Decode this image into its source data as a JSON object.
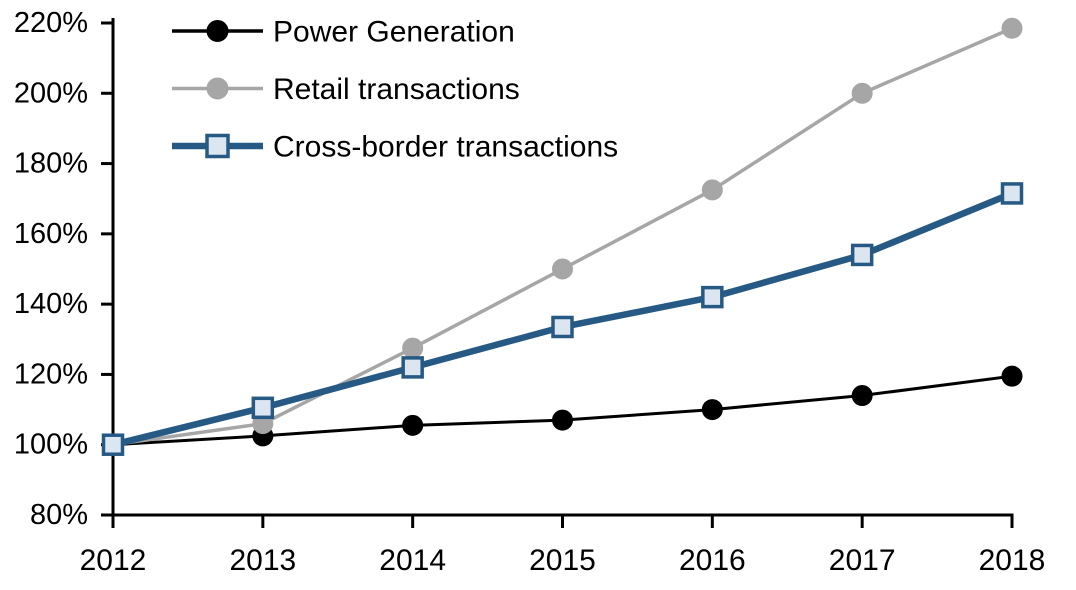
{
  "chart_data": {
    "type": "line",
    "title": "",
    "subtitle": "",
    "categories": [
      "2012",
      "2013",
      "2014",
      "2015",
      "2016",
      "2017",
      "2018"
    ],
    "x_values": [
      2012,
      2013,
      2014,
      2015,
      2016,
      2017,
      2018
    ],
    "series": [
      {
        "name": "Power Generation",
        "values": [
          100,
          102.5,
          105.5,
          107,
          110,
          114,
          119.5
        ],
        "color": "#000000",
        "marker": "circle",
        "marker_fill": "#000000",
        "marker_stroke": "#000000",
        "line_width": 3
      },
      {
        "name": "Retail transactions",
        "values": [
          100,
          106,
          127.5,
          150,
          172.5,
          200,
          218.5
        ],
        "color": "#A6A6A6",
        "marker": "circle",
        "marker_fill": "#A6A6A6",
        "marker_stroke": "#A6A6A6",
        "line_width": 3.5
      },
      {
        "name": "Cross-border transactions",
        "values": [
          100,
          110.5,
          122,
          133.5,
          142,
          154,
          171.5
        ],
        "color": "#265A84",
        "marker": "square",
        "marker_fill": "#DCE6F1",
        "marker_stroke": "#265A84",
        "line_width": 6.5
      }
    ],
    "xlabel": "",
    "ylabel": "",
    "ylim": [
      80,
      220
    ],
    "yticks": [
      80,
      100,
      120,
      140,
      160,
      180,
      200,
      220
    ],
    "ytick_labels": [
      "80%",
      "100%",
      "120%",
      "140%",
      "160%",
      "180%",
      "200%",
      "220%"
    ],
    "xtick_labels": [
      "2012",
      "2013",
      "2014",
      "2015",
      "2016",
      "2017",
      "2018"
    ],
    "unit": "%",
    "grid": false,
    "legend_position": "top-left",
    "axis_color": "#000000",
    "text_color": "#000000",
    "background": "#FFFFFF"
  }
}
